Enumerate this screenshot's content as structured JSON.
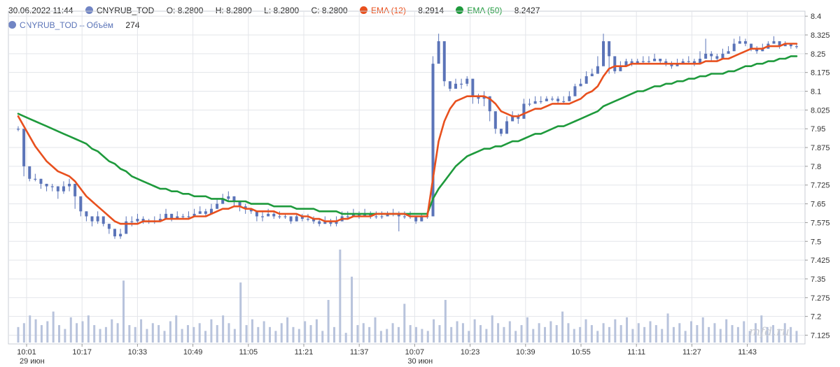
{
  "legend": {
    "datetime": "30.06.2022 11:44",
    "symbol": "CNYRUB_TOD",
    "o_label": "O:",
    "o": "8.2800",
    "h_label": "H:",
    "h": "8.2800",
    "l_label": "L:",
    "l": "8.2800",
    "c_label": "C:",
    "c": "8.2800",
    "ema12_label": "EMA (12)",
    "ema12_value": "8.2914",
    "ema50_label": "EMA (50)",
    "ema50_value": "8.2427",
    "volume_label": "CNYRUB_TOD – Объём",
    "volume_value": "274"
  },
  "colors": {
    "candle": "#5b74b8",
    "volume": "#b8c3dc",
    "ema12": "#e8501e",
    "ema50": "#1e9a3c",
    "grid": "#e3e5ea"
  },
  "watermark": "mfd.ru",
  "chart_data": {
    "type": "candlestick",
    "y_axis": {
      "side": "right",
      "ylim": [
        7.09,
        8.42
      ],
      "ticks": [
        7.125,
        7.2,
        7.275,
        7.35,
        7.425,
        7.5,
        7.575,
        7.65,
        7.725,
        7.8,
        7.875,
        7.95,
        8.025,
        8.1,
        8.175,
        8.25,
        8.325,
        8.4
      ],
      "tick_labels": [
        "7.125",
        "7.2",
        "7.275",
        "7.35",
        "7.425",
        "7.5",
        "7.575",
        "7.65",
        "7.725",
        "7.8",
        "7.875",
        "7.95",
        "8.025",
        "8.1",
        "8.175",
        "8.25",
        "8.325",
        "8.4"
      ]
    },
    "x_axis": {
      "tick_labels": [
        "10:01",
        "10:17",
        "10:33",
        "10:49",
        "11:05",
        "11:21",
        "11:37",
        "10:07",
        "10:23",
        "10:39",
        "10:55",
        "11:11",
        "11:27",
        "11:43"
      ],
      "date_labels": [
        {
          "at": "10:01",
          "text": "29 июн"
        },
        {
          "at": "10:07",
          "text": "30 июн"
        }
      ],
      "grid": true
    },
    "series": [
      {
        "name": "CNYRUB_TOD",
        "kind": "candles",
        "close": [
          7.95,
          7.8,
          7.75,
          7.75,
          7.73,
          7.72,
          7.72,
          7.7,
          7.72,
          7.73,
          7.68,
          7.62,
          7.6,
          7.58,
          7.6,
          7.57,
          7.55,
          7.52,
          7.53,
          7.58,
          7.58,
          7.59,
          7.58,
          7.58,
          7.58,
          7.59,
          7.61,
          7.59,
          7.6,
          7.6,
          7.6,
          7.61,
          7.62,
          7.61,
          7.63,
          7.65,
          7.67,
          7.68,
          7.66,
          7.64,
          7.63,
          7.62,
          7.6,
          7.6,
          7.61,
          7.6,
          7.6,
          7.6,
          7.58,
          7.6,
          7.59,
          7.59,
          7.58,
          7.57,
          7.58,
          7.57,
          7.58,
          7.6,
          7.6,
          7.61,
          7.6,
          7.61,
          7.6,
          7.6,
          7.6,
          7.61,
          7.61,
          7.6,
          7.6,
          7.6,
          7.58,
          7.6,
          7.6,
          8.21,
          8.3,
          8.14,
          8.11,
          8.13,
          8.13,
          8.15,
          8.08,
          8.07,
          8.08,
          8.02,
          7.95,
          7.93,
          7.98,
          8.0,
          7.99,
          8.05,
          8.05,
          8.06,
          8.06,
          8.07,
          8.07,
          8.06,
          8.06,
          8.08,
          8.12,
          8.13,
          8.16,
          8.17,
          8.2,
          8.3,
          8.24,
          8.18,
          8.2,
          8.22,
          8.21,
          8.22,
          8.22,
          8.22,
          8.23,
          8.22,
          8.21,
          8.2,
          8.21,
          8.22,
          8.22,
          8.21,
          8.23,
          8.25,
          8.24,
          8.23,
          8.25,
          8.26,
          8.29,
          8.3,
          8.29,
          8.27,
          8.26,
          8.27,
          8.29,
          8.3,
          8.28,
          8.29,
          8.28,
          8.28
        ],
        "wick_low": [
          7.94,
          7.76,
          7.74,
          7.74,
          7.71,
          7.7,
          7.7,
          7.67,
          7.69,
          7.7,
          7.63,
          7.6,
          7.58,
          7.56,
          7.57,
          7.56,
          7.53,
          7.51,
          7.51,
          7.56,
          7.56,
          7.57,
          7.57,
          7.57,
          7.57,
          7.58,
          7.59,
          7.58,
          7.59,
          7.59,
          7.59,
          7.6,
          7.61,
          7.6,
          7.62,
          7.63,
          7.65,
          7.66,
          7.64,
          7.62,
          7.61,
          7.61,
          7.58,
          7.58,
          7.6,
          7.59,
          7.59,
          7.59,
          7.57,
          7.58,
          7.58,
          7.58,
          7.57,
          7.56,
          7.57,
          7.56,
          7.56,
          7.59,
          7.59,
          7.6,
          7.59,
          7.6,
          7.59,
          7.59,
          7.59,
          7.6,
          7.6,
          7.54,
          7.59,
          7.59,
          7.57,
          7.58,
          7.59,
          8.2,
          8.25,
          8.12,
          8.1,
          8.12,
          8.11,
          8.12,
          8.05,
          8.05,
          8.04,
          7.98,
          7.93,
          7.92,
          7.96,
          7.98,
          7.97,
          8.03,
          8.04,
          8.05,
          8.05,
          8.06,
          8.06,
          8.05,
          8.05,
          8.07,
          8.1,
          8.12,
          8.14,
          8.16,
          8.17,
          8.28,
          8.17,
          8.17,
          8.19,
          8.21,
          8.2,
          8.21,
          8.21,
          8.21,
          8.22,
          8.21,
          8.2,
          8.19,
          8.2,
          8.21,
          8.21,
          8.2,
          8.22,
          8.23,
          8.22,
          8.22,
          8.24,
          8.25,
          8.28,
          8.29,
          8.28,
          8.26,
          8.25,
          8.26,
          8.28,
          8.29,
          8.27,
          8.28,
          8.27,
          8.27
        ],
        "wick_high": [
          7.96,
          7.84,
          7.76,
          7.77,
          7.75,
          7.73,
          7.73,
          7.72,
          7.74,
          7.75,
          7.71,
          7.64,
          7.62,
          7.6,
          7.62,
          7.59,
          7.57,
          7.54,
          7.55,
          7.6,
          7.6,
          7.61,
          7.6,
          7.59,
          7.6,
          7.61,
          7.63,
          7.61,
          7.62,
          7.61,
          7.62,
          7.63,
          7.64,
          7.63,
          7.65,
          7.67,
          7.69,
          7.7,
          7.68,
          7.66,
          7.65,
          7.63,
          7.62,
          7.62,
          7.63,
          7.62,
          7.62,
          7.61,
          7.6,
          7.61,
          7.61,
          7.61,
          7.6,
          7.59,
          7.6,
          7.59,
          7.6,
          7.62,
          7.62,
          7.63,
          7.62,
          7.63,
          7.62,
          7.62,
          7.62,
          7.62,
          7.63,
          7.62,
          7.62,
          7.62,
          7.6,
          7.61,
          7.62,
          8.24,
          8.33,
          8.16,
          8.13,
          8.15,
          8.15,
          8.16,
          8.1,
          8.09,
          8.1,
          8.05,
          7.98,
          7.95,
          8.0,
          8.02,
          8.01,
          8.07,
          8.07,
          8.08,
          8.08,
          8.08,
          8.08,
          8.08,
          8.08,
          8.1,
          8.13,
          8.15,
          8.18,
          8.19,
          8.24,
          8.33,
          8.28,
          8.2,
          8.22,
          8.23,
          8.23,
          8.23,
          8.24,
          8.24,
          8.25,
          8.23,
          8.23,
          8.22,
          8.23,
          8.23,
          8.24,
          8.23,
          8.26,
          8.31,
          8.26,
          8.25,
          8.27,
          8.28,
          8.31,
          8.32,
          8.31,
          8.29,
          8.28,
          8.29,
          8.3,
          8.32,
          8.3,
          8.3,
          8.29,
          8.29
        ]
      },
      {
        "name": "EMA (12)",
        "kind": "line",
        "values": [
          8.0,
          7.96,
          7.92,
          7.88,
          7.85,
          7.82,
          7.8,
          7.78,
          7.77,
          7.76,
          7.74,
          7.71,
          7.68,
          7.66,
          7.64,
          7.62,
          7.6,
          7.58,
          7.57,
          7.57,
          7.57,
          7.57,
          7.58,
          7.58,
          7.58,
          7.58,
          7.59,
          7.59,
          7.59,
          7.59,
          7.59,
          7.6,
          7.6,
          7.6,
          7.61,
          7.62,
          7.63,
          7.63,
          7.64,
          7.64,
          7.63,
          7.63,
          7.62,
          7.62,
          7.62,
          7.62,
          7.61,
          7.61,
          7.61,
          7.61,
          7.6,
          7.6,
          7.59,
          7.59,
          7.58,
          7.58,
          7.58,
          7.59,
          7.59,
          7.6,
          7.6,
          7.6,
          7.6,
          7.61,
          7.61,
          7.61,
          7.61,
          7.61,
          7.61,
          7.6,
          7.6,
          7.6,
          7.6,
          7.75,
          7.9,
          7.98,
          8.03,
          8.06,
          8.07,
          8.08,
          8.08,
          8.08,
          8.08,
          8.07,
          8.05,
          8.02,
          8.01,
          8.0,
          8.0,
          8.01,
          8.02,
          8.03,
          8.03,
          8.04,
          8.05,
          8.05,
          8.05,
          8.05,
          8.06,
          8.07,
          8.09,
          8.1,
          8.12,
          8.16,
          8.19,
          8.2,
          8.2,
          8.2,
          8.21,
          8.21,
          8.21,
          8.21,
          8.21,
          8.21,
          8.21,
          8.21,
          8.21,
          8.21,
          8.21,
          8.21,
          8.21,
          8.22,
          8.22,
          8.22,
          8.23,
          8.23,
          8.24,
          8.25,
          8.26,
          8.27,
          8.27,
          8.27,
          8.28,
          8.28,
          8.28,
          8.29,
          8.29,
          8.29
        ]
      },
      {
        "name": "EMA (50)",
        "kind": "line",
        "values": [
          8.01,
          8.0,
          7.99,
          7.98,
          7.97,
          7.96,
          7.95,
          7.94,
          7.93,
          7.92,
          7.91,
          7.9,
          7.89,
          7.87,
          7.86,
          7.84,
          7.82,
          7.81,
          7.79,
          7.78,
          7.76,
          7.75,
          7.74,
          7.73,
          7.72,
          7.71,
          7.71,
          7.7,
          7.7,
          7.69,
          7.69,
          7.68,
          7.68,
          7.68,
          7.67,
          7.67,
          7.67,
          7.66,
          7.66,
          7.66,
          7.66,
          7.65,
          7.65,
          7.65,
          7.65,
          7.64,
          7.64,
          7.64,
          7.64,
          7.63,
          7.63,
          7.63,
          7.63,
          7.62,
          7.62,
          7.62,
          7.62,
          7.61,
          7.61,
          7.61,
          7.61,
          7.61,
          7.61,
          7.61,
          7.61,
          7.61,
          7.61,
          7.61,
          7.61,
          7.61,
          7.61,
          7.61,
          7.61,
          7.67,
          7.71,
          7.74,
          7.77,
          7.8,
          7.82,
          7.84,
          7.85,
          7.86,
          7.87,
          7.87,
          7.88,
          7.88,
          7.89,
          7.9,
          7.9,
          7.91,
          7.92,
          7.93,
          7.93,
          7.94,
          7.95,
          7.96,
          7.96,
          7.97,
          7.98,
          7.99,
          8.0,
          8.01,
          8.02,
          8.04,
          8.05,
          8.06,
          8.07,
          8.08,
          8.09,
          8.1,
          8.1,
          8.11,
          8.12,
          8.12,
          8.13,
          8.13,
          8.14,
          8.14,
          8.15,
          8.15,
          8.16,
          8.16,
          8.17,
          8.17,
          8.17,
          8.18,
          8.18,
          8.19,
          8.2,
          8.2,
          8.21,
          8.21,
          8.22,
          8.22,
          8.23,
          8.23,
          8.24,
          8.24
        ]
      }
    ],
    "volume": [
      8,
      10,
      14,
      12,
      9,
      11,
      16,
      9,
      7,
      13,
      10,
      11,
      14,
      9,
      7,
      8,
      12,
      10,
      32,
      9,
      8,
      12,
      7,
      10,
      9,
      6,
      11,
      14,
      7,
      9,
      8,
      10,
      6,
      12,
      9,
      14,
      10,
      7,
      31,
      9,
      12,
      8,
      11,
      8,
      6,
      10,
      13,
      8,
      7,
      11,
      9,
      12,
      6,
      22,
      8,
      48,
      5,
      34,
      9,
      10,
      8,
      13,
      6,
      7,
      10,
      8,
      20,
      9,
      8,
      7,
      6,
      12,
      9,
      22,
      8,
      11,
      10,
      6,
      12,
      9,
      7,
      14,
      10,
      8,
      11,
      6,
      9,
      13,
      7,
      10,
      8,
      11,
      9,
      16,
      10,
      7,
      8,
      12,
      9,
      6,
      10,
      8,
      12,
      9,
      13,
      7,
      10,
      8,
      11,
      9,
      7,
      15,
      8,
      10,
      6,
      11,
      9,
      13,
      8,
      10,
      7,
      12,
      9,
      8,
      11,
      6,
      10,
      14,
      8,
      9,
      7,
      10,
      8,
      6
    ]
  }
}
